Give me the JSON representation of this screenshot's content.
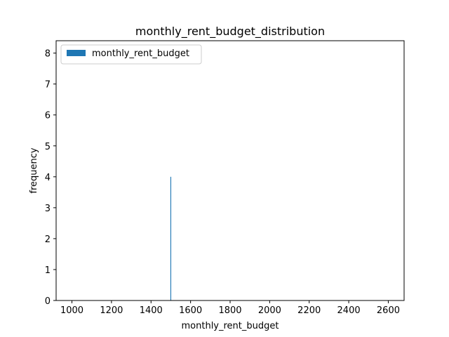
{
  "chart_data": {
    "type": "bar",
    "title": "monthly_rent_budget_distribution",
    "xlabel": "monthly_rent_budget",
    "ylabel": "frequency",
    "xlim": [
      920,
      2680
    ],
    "ylim": [
      0,
      8.4
    ],
    "xticks": [
      1000,
      1200,
      1400,
      1600,
      1800,
      2000,
      2200,
      2400,
      2600
    ],
    "yticks": [
      0,
      1,
      2,
      3,
      4,
      5,
      6,
      7,
      8
    ],
    "grid": false,
    "legend": {
      "position": "top-left",
      "entries": [
        "monthly_rent_budget"
      ]
    },
    "series": [
      {
        "name": "monthly_rent_budget",
        "color": "#1f77b4",
        "bars": [
          {
            "x0": 1498,
            "x1": 1502,
            "value": 4
          }
        ]
      }
    ]
  }
}
